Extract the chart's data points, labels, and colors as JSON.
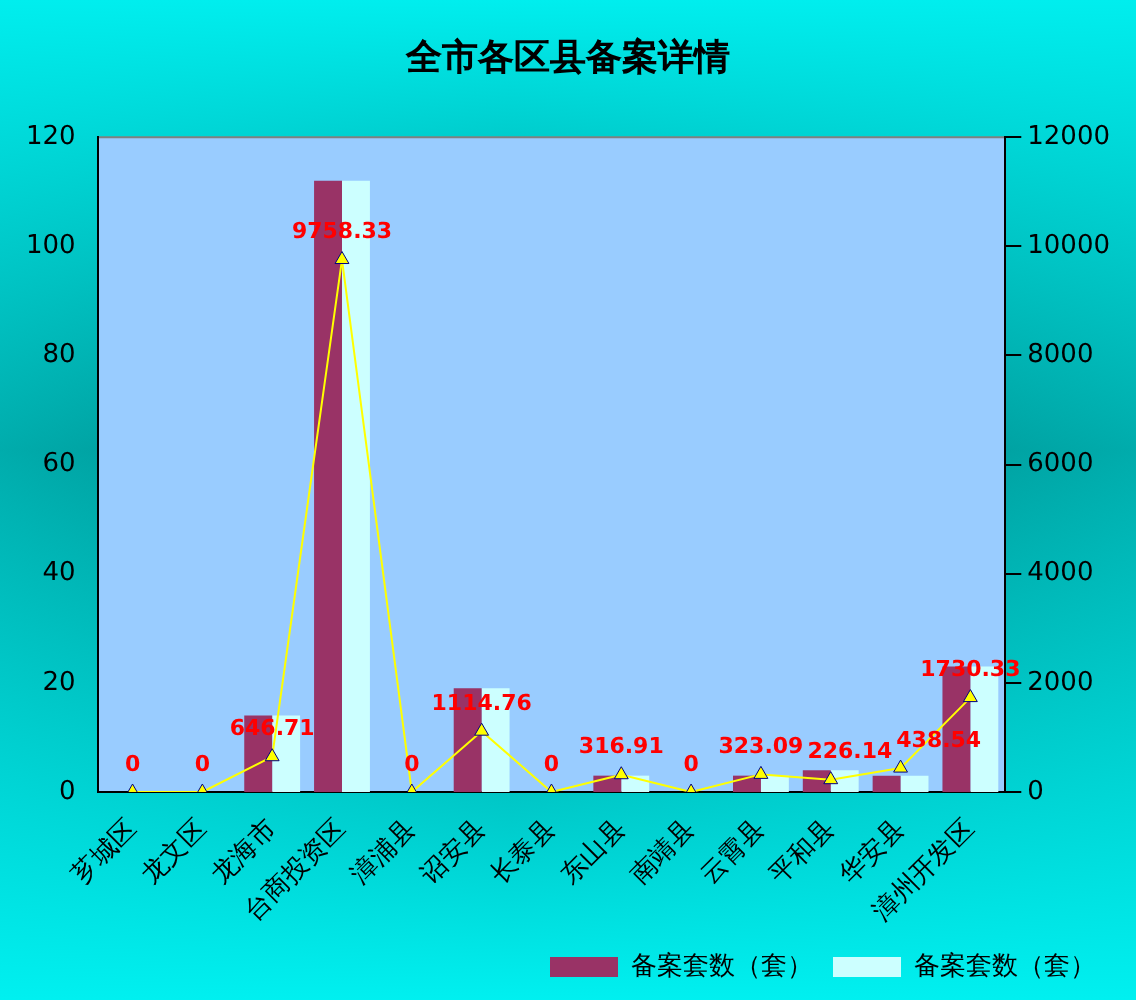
{
  "chart_data": {
    "type": "bar",
    "title": "全市各区县备案详情",
    "categories": [
      "芗城区",
      "龙文区",
      "龙海市",
      "台商投资区",
      "漳浦县",
      "诏安县",
      "长泰县",
      "东山县",
      "南靖县",
      "云霄县",
      "平和县",
      "华安县",
      "漳州开发区"
    ],
    "series": [
      {
        "name": "备案套数（套）",
        "color": "#993366",
        "values": [
          0,
          0,
          14,
          112,
          0,
          19,
          0,
          3,
          0,
          3,
          4,
          3,
          23
        ]
      },
      {
        "name": "备案套数（套）",
        "color": "#ccffff",
        "values": [
          0,
          0,
          14,
          112,
          0,
          19,
          0,
          3,
          0,
          3,
          4,
          3,
          23
        ]
      },
      {
        "type": "line",
        "axis": "y2",
        "color": "#ffff00",
        "marker": "triangle",
        "values": [
          0,
          0,
          646.71,
          9758.33,
          0,
          1114.76,
          0,
          316.91,
          0,
          323.09,
          226.14,
          438.54,
          1730.33
        ],
        "value_labels": [
          "0",
          "0",
          "646.71",
          "9758.33",
          "0",
          "1114.76",
          "0",
          "316.91",
          "0",
          "323.09",
          "226.14",
          "438.54",
          "1730.33"
        ]
      }
    ],
    "ylim": [
      0,
      120
    ],
    "yticks": [
      0,
      20,
      40,
      60,
      80,
      100,
      120
    ],
    "y2lim": [
      0,
      12000
    ],
    "y2ticks": [
      0,
      2000,
      4000,
      6000,
      8000,
      10000,
      12000
    ],
    "grid": false,
    "legend": "bottom right"
  }
}
